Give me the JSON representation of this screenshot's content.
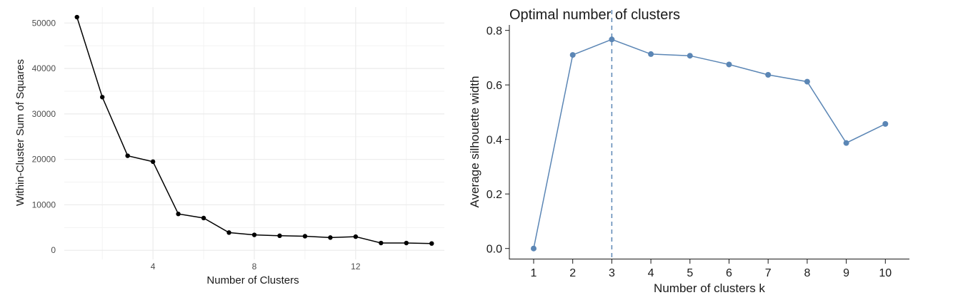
{
  "chart_data": [
    {
      "type": "line",
      "title": "",
      "xlabel": "Number of Clusters",
      "ylabel": "Within-Cluster Sum of Squares",
      "x": [
        1,
        2,
        3,
        4,
        5,
        6,
        7,
        8,
        9,
        10,
        11,
        12,
        13,
        14,
        15
      ],
      "series": [
        {
          "values": [
            51300,
            33700,
            20800,
            19500,
            8000,
            7100,
            3900,
            3400,
            3200,
            3100,
            2800,
            3000,
            1600,
            1600,
            1500
          ]
        }
      ],
      "x_ticks": [
        "4",
        "8",
        "12"
      ],
      "y_ticks": [
        "0",
        "10000",
        "20000",
        "30000",
        "40000",
        "50000"
      ],
      "xlim": [
        0.5,
        15.5
      ],
      "ylim": [
        -2000,
        53500
      ],
      "grid": true,
      "colors": {
        "line": "#000000",
        "grid_major": "#ebebeb",
        "grid_minor": "#f3f3f3"
      }
    },
    {
      "type": "line",
      "title": "Optimal number of clusters",
      "xlabel": "Number of clusters k",
      "ylabel": "Average silhouette width",
      "categories": [
        "1",
        "2",
        "3",
        "4",
        "5",
        "6",
        "7",
        "8",
        "9",
        "10"
      ],
      "series": [
        {
          "values": [
            0.0,
            0.71,
            0.767,
            0.713,
            0.707,
            0.675,
            0.637,
            0.612,
            0.387,
            0.457
          ]
        }
      ],
      "y_ticks": [
        "0.0",
        "0.2",
        "0.4",
        "0.6",
        "0.8"
      ],
      "ylim": [
        -0.04,
        0.82
      ],
      "optimal_k": 3,
      "grid": false,
      "colors": {
        "line": "#5b86b5"
      }
    }
  ]
}
